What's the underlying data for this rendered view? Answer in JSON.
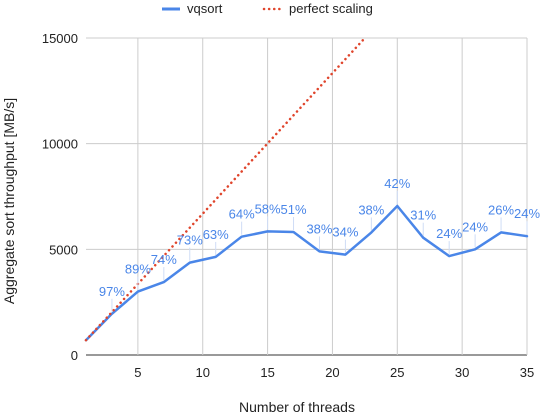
{
  "chart_data": {
    "type": "line",
    "xlabel": "Number of threads",
    "ylabel": "Aggregate sort throughput [MB/s]",
    "xlim": [
      1,
      35
    ],
    "ylim": [
      0,
      15000
    ],
    "x_ticks": [
      5,
      10,
      15,
      20,
      25,
      30,
      35
    ],
    "y_ticks": [
      0,
      5000,
      10000,
      15000
    ],
    "grid": true,
    "legend_position": "top",
    "series": [
      {
        "name": "vqsort",
        "color": "#4a86e8",
        "style": "solid",
        "x": [
          1,
          3,
          5,
          7,
          9,
          11,
          13,
          15,
          17,
          19,
          21,
          23,
          25,
          27,
          29,
          31,
          33,
          35
        ],
        "y": [
          700,
          1950,
          3000,
          3450,
          4370,
          4640,
          5600,
          5850,
          5820,
          4900,
          4750,
          5800,
          7050,
          5550,
          4680,
          5000,
          5800,
          5620
        ],
        "labels": [
          "",
          "97%",
          "89%",
          "74%",
          "73%",
          "63%",
          "64%",
          "58%",
          "51%",
          "38%",
          "34%",
          "38%",
          "42%",
          "31%",
          "24%",
          "24%",
          "26%",
          "24%"
        ]
      },
      {
        "name": "perfect scaling",
        "color": "#e0452c",
        "style": "dotted",
        "x": [
          1,
          22.5
        ],
        "y": [
          700,
          15000
        ]
      }
    ]
  }
}
